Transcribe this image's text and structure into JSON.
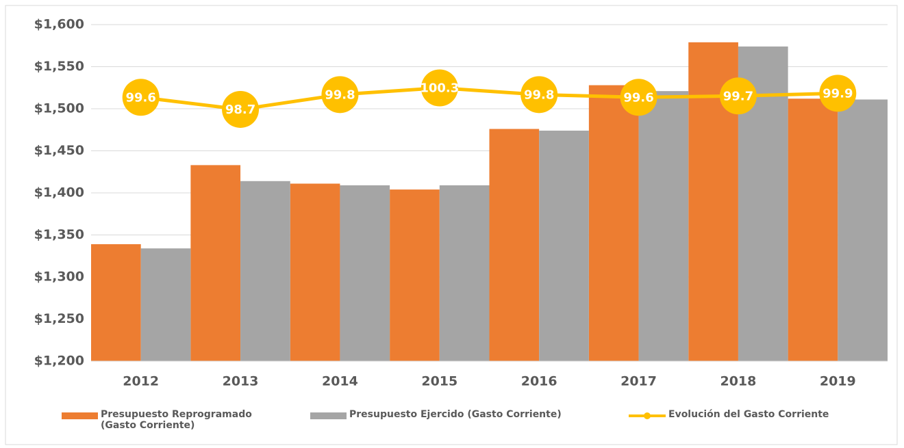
{
  "chart_data": {
    "type": "bar",
    "categories": [
      "2012",
      "2013",
      "2014",
      "2015",
      "2016",
      "2017",
      "2018",
      "2019"
    ],
    "series": [
      {
        "name": "Presupuesto Reprogramado (Gasto Corriente)",
        "color": "#ed7d31",
        "values": [
          1339,
          1433,
          1411,
          1404,
          1476,
          1528,
          1579,
          1512
        ]
      },
      {
        "name": "Presupuesto Ejercido (Gasto Corriente)",
        "color": "#a5a5a5",
        "values": [
          1334,
          1414,
          1409,
          1409,
          1474,
          1521,
          1574,
          1511
        ]
      },
      {
        "name": "Evolución del Gasto Corriente",
        "color": "#ffc000",
        "type": "line",
        "axis": "y2",
        "values": [
          99.6,
          98.7,
          99.8,
          100.3,
          99.8,
          99.6,
          99.7,
          99.9
        ]
      }
    ],
    "ylim": [
      1200,
      1600
    ],
    "yticks": [
      {
        "value": 1200,
        "label": "$1,200"
      },
      {
        "value": 1250,
        "label": "$1,250"
      },
      {
        "value": 1300,
        "label": "$1,300"
      },
      {
        "value": 1350,
        "label": "$1,350"
      },
      {
        "value": 1400,
        "label": "$1,400"
      },
      {
        "value": 1450,
        "label": "$1,450"
      },
      {
        "value": 1500,
        "label": "$1,500"
      },
      {
        "value": 1550,
        "label": "$1,550"
      },
      {
        "value": 1600,
        "label": "$1,600"
      }
    ],
    "y2lim": [
      80,
      105
    ],
    "grid": true,
    "legend": "bottom"
  }
}
